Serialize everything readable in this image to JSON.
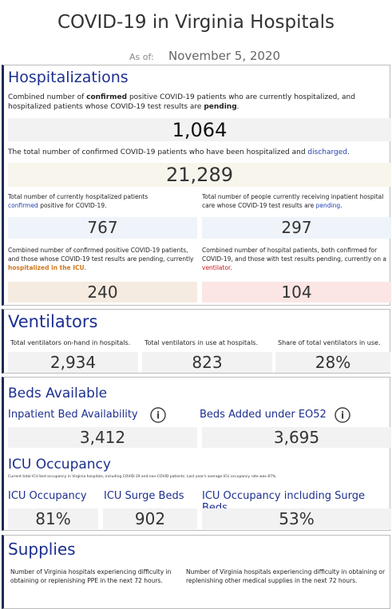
{
  "header": {
    "title": "COVID-19 in Virginia Hospitals",
    "as_of_label": "As of:",
    "as_of_date": "November 5, 2020"
  },
  "hospitalizations": {
    "title": "Hospitalizations",
    "current": {
      "description": [
        "Combined number of ",
        "confirmed",
        " positive COVID-19 patients who are currently hospitalized, and hospitalized patients whose COVID-19 test results are ",
        "pending",
        "."
      ],
      "value": "1,064"
    },
    "discharged": {
      "description": [
        "The total number of confirmed COVID-19 patients who have been hospitalized and ",
        "discharged",
        "."
      ],
      "value": "21,289"
    },
    "confirmed": {
      "description": [
        "Total number of currently hospitalized patients ",
        "confirmed",
        " positive for COVID-19."
      ],
      "value": "767"
    },
    "pending": {
      "description": [
        "Total number of people currently receiving inpatient hospital care whose COVID-19 test results are ",
        "pending",
        "."
      ],
      "value": "297"
    },
    "icu": {
      "description": [
        "Combined number of confirmed positive COVID-19 patients, and those whose COVID-19 test results are pending, currently ",
        "hospitalized in the ICU",
        "."
      ],
      "value": "240"
    },
    "ventilator": {
      "description": [
        "Combined number of hospital patients, both confirmed for COVID-19, and those with test results pending, currently on a ",
        "ventilator",
        "."
      ],
      "value": "104"
    }
  },
  "ventilators": {
    "title": "Ventilators",
    "items": [
      {
        "label": "Total ventilators on-hand in hospitals.",
        "value": "2,934"
      },
      {
        "label": "Total ventilators in use at hospitals.",
        "value": "823"
      },
      {
        "label": "Share of total ventilators in use.",
        "value": "28%"
      }
    ]
  },
  "beds": {
    "title": "Beds Available",
    "items": [
      {
        "label": "Inpatient Bed Availability",
        "value": "3,412"
      },
      {
        "label": "Beds Added under EO52",
        "value": "3,695"
      }
    ],
    "icu_title": "ICU Occupancy",
    "icu_note": "Current total ICU bed occupancy in Virginia hospitals, including COVID-19 and non-COVID patients. Last year's average ICU occupancy rate was 87%.",
    "icu_items": [
      {
        "label": "ICU Occupancy",
        "value": "81%"
      },
      {
        "label": "ICU Surge Beds",
        "value": "902"
      },
      {
        "label": "ICU Occupancy including Surge Beds",
        "value": "53%"
      }
    ]
  },
  "supplies": {
    "title": "Supplies",
    "items": [
      "Number of Virginia hospitals experiencing difficulty in obtaining or replenishing PPE in the next 72 hours.",
      "Number of Virginia hospitals experiencing difficulty in obtaining or replenishing other medical supplies in the next 72 hours."
    ]
  }
}
